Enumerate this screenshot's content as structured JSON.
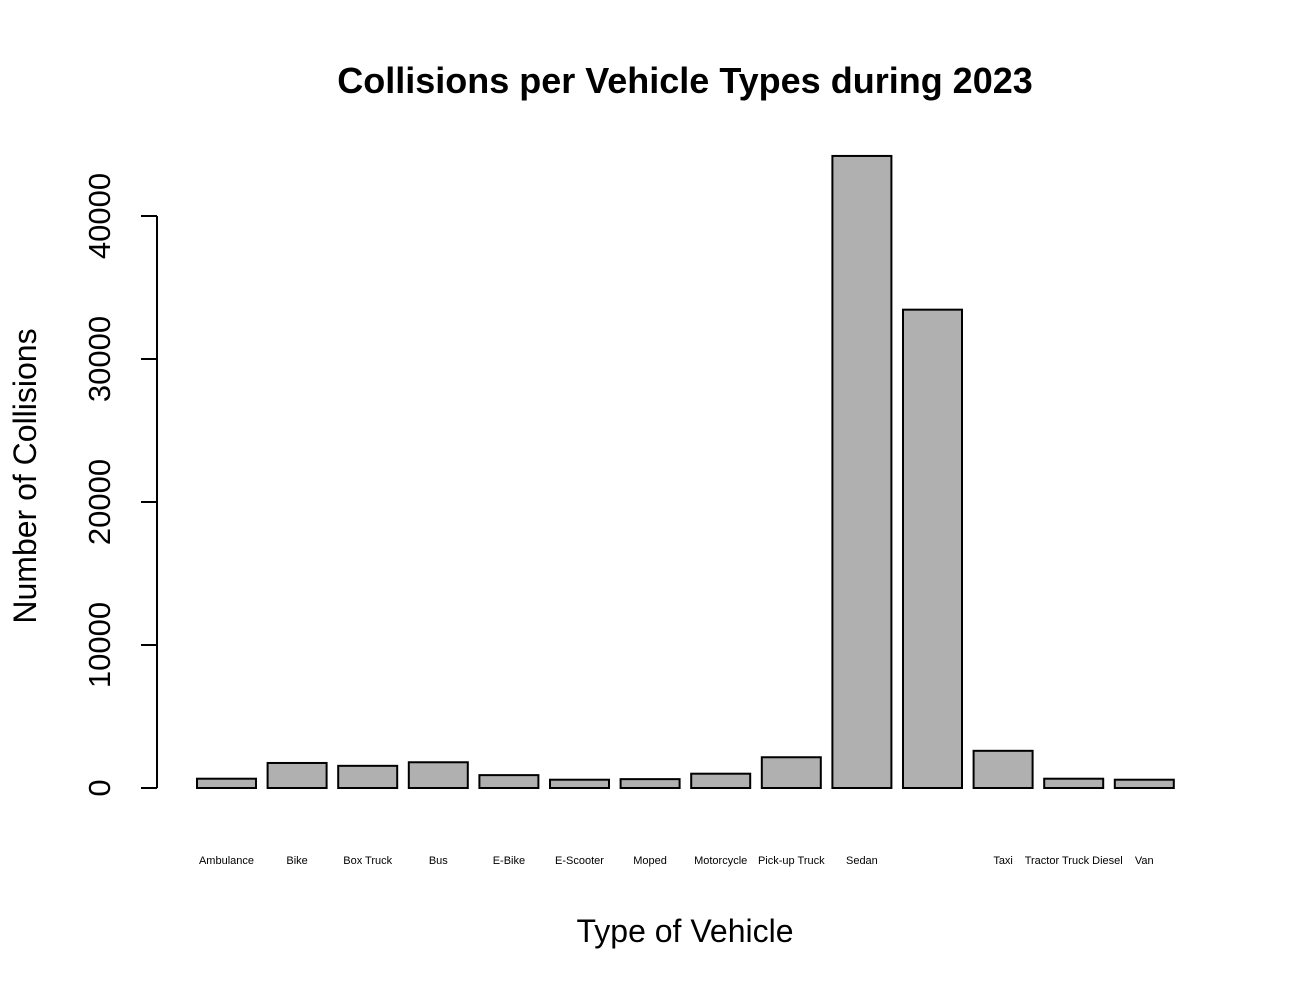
{
  "chart_data": {
    "type": "bar",
    "title": "Collisions per Vehicle Types during 2023",
    "xlabel": "Type of Vehicle",
    "ylabel": "Number of Collisions",
    "categories": [
      "Ambulance",
      "Bike",
      "Box Truck",
      "Bus",
      "E-Bike",
      "E-Scooter",
      "Moped",
      "Motorcycle",
      "Pick-up Truck",
      "Sedan",
      "",
      "Taxi",
      "Tractor Truck Diesel",
      "Van"
    ],
    "values": [
      650,
      1750,
      1550,
      1800,
      900,
      580,
      620,
      1000,
      2150,
      44200,
      33450,
      2600,
      650,
      580
    ],
    "yticks": [
      0,
      10000,
      20000,
      30000,
      40000
    ],
    "ytick_labels": [
      "0",
      "10000",
      "20000",
      "30000",
      "40000"
    ],
    "ylim": [
      0,
      44200
    ],
    "bar_color": "#b0b0b0",
    "grid": false,
    "legend": "none"
  }
}
